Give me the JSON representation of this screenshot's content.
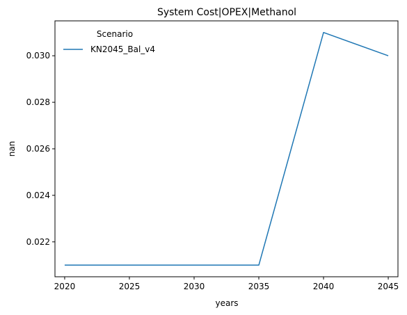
{
  "chart_data": {
    "type": "line",
    "title": "System Cost|OPEX|Methanol",
    "xlabel": "years",
    "ylabel": "nan",
    "x": [
      2020,
      2025,
      2030,
      2035,
      2040,
      2045
    ],
    "series": [
      {
        "name": "KN2045_Bal_v4",
        "values": [
          0.021,
          0.021,
          0.021,
          0.021,
          0.031,
          0.03
        ],
        "color": "#1f77b4"
      }
    ],
    "xlim": [
      2019.25,
      2045.75
    ],
    "ylim": [
      0.0205,
      0.0315
    ],
    "xticks": [
      2020,
      2025,
      2030,
      2035,
      2040,
      2045
    ],
    "yticks": [
      0.022,
      0.024,
      0.026,
      0.028,
      0.03
    ],
    "ytick_labels": [
      "0.022",
      "0.024",
      "0.026",
      "0.028",
      "0.030"
    ],
    "grid": false,
    "legend": {
      "title": "Scenario",
      "placement": "top-left",
      "entries": [
        "KN2045_Bal_v4"
      ]
    }
  }
}
